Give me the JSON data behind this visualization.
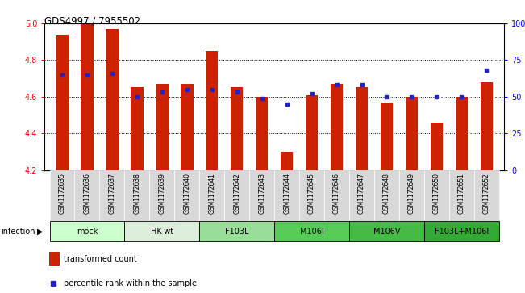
{
  "title": "GDS4997 / 7955502",
  "samples": [
    "GSM1172635",
    "GSM1172636",
    "GSM1172637",
    "GSM1172638",
    "GSM1172639",
    "GSM1172640",
    "GSM1172641",
    "GSM1172642",
    "GSM1172643",
    "GSM1172644",
    "GSM1172645",
    "GSM1172646",
    "GSM1172647",
    "GSM1172648",
    "GSM1172649",
    "GSM1172650",
    "GSM1172651",
    "GSM1172652"
  ],
  "bar_values": [
    4.94,
    5.0,
    4.97,
    4.65,
    4.67,
    4.67,
    4.85,
    4.65,
    4.6,
    4.3,
    4.61,
    4.67,
    4.65,
    4.57,
    4.6,
    4.46,
    4.6,
    4.68
  ],
  "dot_percentiles": [
    65,
    65,
    66,
    50,
    53,
    55,
    55,
    53,
    49,
    45,
    52,
    58,
    58,
    50,
    50,
    50,
    50,
    68
  ],
  "groups": [
    {
      "label": "mock",
      "start": 0,
      "end": 2,
      "color": "#ccffcc"
    },
    {
      "label": "HK-wt",
      "start": 3,
      "end": 5,
      "color": "#ddeedd"
    },
    {
      "label": "F103L",
      "start": 6,
      "end": 8,
      "color": "#99dd99"
    },
    {
      "label": "M106I",
      "start": 9,
      "end": 11,
      "color": "#55cc55"
    },
    {
      "label": "M106V",
      "start": 12,
      "end": 14,
      "color": "#44bb44"
    },
    {
      "label": "F103L+M106I",
      "start": 15,
      "end": 17,
      "color": "#33aa33"
    }
  ],
  "ylim": [
    4.2,
    5.0
  ],
  "y_ticks": [
    4.2,
    4.4,
    4.6,
    4.8,
    5.0
  ],
  "right_ticks": [
    0,
    25,
    50,
    75,
    100
  ],
  "bar_color": "#cc2200",
  "dot_color": "#2222cc",
  "bar_width": 0.5,
  "bg_color": "#ffffff"
}
